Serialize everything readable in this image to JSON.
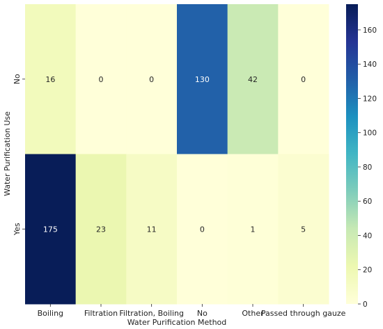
{
  "chart_data": {
    "type": "heatmap",
    "title": "",
    "xlabel": "Water Purification Method",
    "ylabel": "Water Purification Use",
    "x_categories": [
      "Boiling",
      "Filtration",
      "Filtration, Boiling",
      "No",
      "Other",
      "Passed through gauze"
    ],
    "y_categories": [
      "No",
      "Yes"
    ],
    "values": [
      [
        16,
        0,
        0,
        130,
        42,
        0
      ],
      [
        175,
        23,
        11,
        0,
        1,
        5
      ]
    ],
    "colorbar": {
      "min": 0,
      "max": 175,
      "ticks": [
        0,
        20,
        40,
        60,
        80,
        100,
        120,
        140,
        160
      ],
      "colormap": "YlGnBu"
    },
    "grid": false
  }
}
